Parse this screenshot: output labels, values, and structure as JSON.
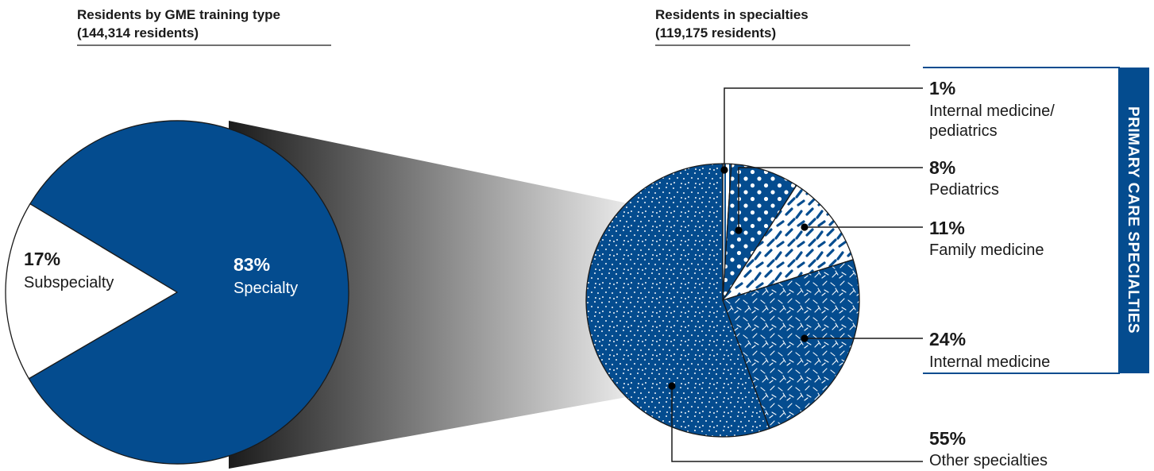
{
  "colors": {
    "blue": "#044c8f",
    "white": "#ffffff",
    "dark": "#1a1a1a"
  },
  "chart_data": [
    {
      "type": "pie",
      "title": "Residents by GME training type",
      "subtitle": "(144,314 residents)",
      "slices": [
        {
          "pct": "83%",
          "label": "Specialty",
          "value": 83
        },
        {
          "pct": "17%",
          "label": "Subspecialty",
          "value": 17
        }
      ]
    },
    {
      "type": "pie",
      "title": "Residents in specialties",
      "subtitle": "(119,175 residents)",
      "group_label": "PRIMARY CARE SPECIALTIES",
      "slices": [
        {
          "pct": "1%",
          "label_lines": [
            "Internal medicine/",
            "pediatrics"
          ],
          "value": 1,
          "pattern": "stripes"
        },
        {
          "pct": "8%",
          "label_lines": [
            "Pediatrics"
          ],
          "value": 8,
          "pattern": "big-dots"
        },
        {
          "pct": "11%",
          "label_lines": [
            "Family medicine"
          ],
          "value": 11,
          "pattern": "dashes"
        },
        {
          "pct": "24%",
          "label_lines": [
            "Internal medicine"
          ],
          "value": 24,
          "pattern": "ticks"
        },
        {
          "pct": "55%",
          "label_lines": [
            "Other specialties"
          ],
          "value": 55,
          "pattern": "fine-dots"
        }
      ]
    }
  ]
}
